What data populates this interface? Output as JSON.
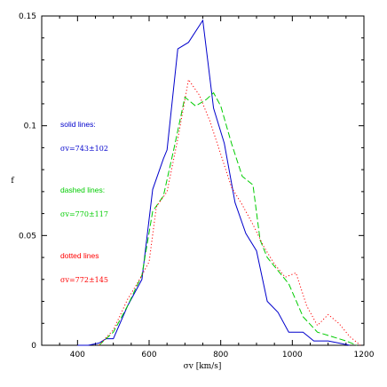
{
  "chart_data": {
    "type": "line",
    "xlabel": "σv [km/s]",
    "ylabel": "f",
    "xlim": [
      300,
      1200
    ],
    "ylim": [
      0,
      0.15
    ],
    "x_ticks": [
      "400",
      "600",
      "800",
      "1000",
      "1200"
    ],
    "y_ticks": [
      "0",
      "0.05",
      "0.1",
      "0.15"
    ],
    "grid": false,
    "annotations": [
      {
        "label": "solid lines:",
        "value": "σv=743±102",
        "color": "#0000cc"
      },
      {
        "label": "dashed lines:",
        "value": "σv=770±117",
        "color": "#00cc00"
      },
      {
        "label": "dotted lines",
        "value": "σv=772±145",
        "color": "#ff0000"
      }
    ],
    "series": [
      {
        "style": "solid",
        "color": "#0000cc",
        "x": [
          400,
          430,
          460,
          480,
          500,
          540,
          580,
          610,
          640,
          650,
          680,
          710,
          750,
          780,
          810,
          840,
          870,
          900,
          930,
          960,
          990,
          1030,
          1060,
          1100,
          1130,
          1160
        ],
        "y": [
          0.0,
          0.0,
          0.001,
          0.003,
          0.003,
          0.018,
          0.03,
          0.071,
          0.085,
          0.089,
          0.135,
          0.138,
          0.148,
          0.108,
          0.092,
          0.065,
          0.051,
          0.043,
          0.02,
          0.015,
          0.006,
          0.006,
          0.002,
          0.002,
          0.001,
          0.0
        ]
      },
      {
        "style": "dashed",
        "color": "#00cc00",
        "x": [
          460,
          500,
          540,
          580,
          610,
          640,
          670,
          700,
          730,
          760,
          780,
          800,
          830,
          860,
          890,
          910,
          930,
          960,
          990,
          1030,
          1070,
          1110,
          1150,
          1180
        ],
        "y": [
          0.0,
          0.006,
          0.018,
          0.032,
          0.061,
          0.068,
          0.09,
          0.113,
          0.109,
          0.112,
          0.115,
          0.109,
          0.092,
          0.077,
          0.073,
          0.048,
          0.04,
          0.034,
          0.028,
          0.013,
          0.006,
          0.004,
          0.002,
          0.0
        ]
      },
      {
        "style": "dotted",
        "color": "#ff0000",
        "x": [
          460,
          500,
          540,
          570,
          600,
          620,
          650,
          680,
          710,
          740,
          770,
          800,
          830,
          860,
          890,
          920,
          950,
          980,
          1010,
          1040,
          1070,
          1100,
          1130,
          1160,
          1190
        ],
        "y": [
          0.0,
          0.007,
          0.021,
          0.029,
          0.038,
          0.063,
          0.07,
          0.094,
          0.121,
          0.114,
          0.102,
          0.087,
          0.072,
          0.064,
          0.055,
          0.045,
          0.037,
          0.031,
          0.033,
          0.018,
          0.009,
          0.014,
          0.01,
          0.004,
          0.0
        ]
      }
    ]
  }
}
